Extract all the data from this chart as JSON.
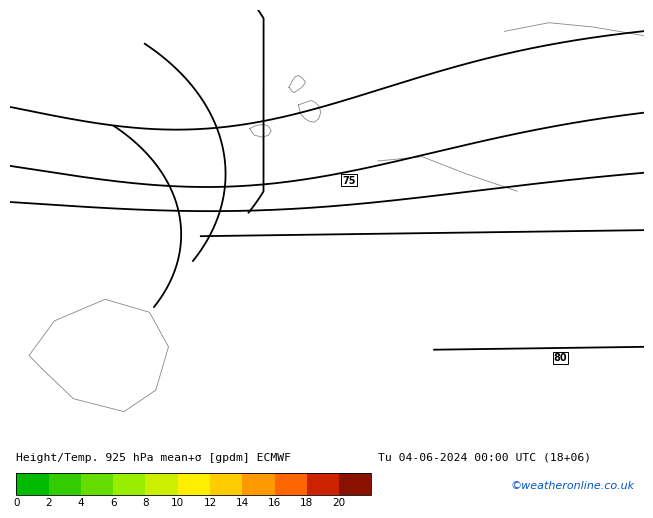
{
  "title_left": "Height/Temp. 925 hPa mean+σ [gpdm] ECMWF",
  "title_right": "Tu 04-06-2024 00:00 UTC (18+06)",
  "watermark": "©weatheronline.co.uk",
  "map_bg": "#00ee00",
  "colorbar_values": [
    0,
    2,
    4,
    6,
    8,
    10,
    12,
    14,
    16,
    18,
    20
  ],
  "colorbar_colors": [
    "#00bb00",
    "#33cc00",
    "#66dd00",
    "#99ee00",
    "#ccee00",
    "#ffee00",
    "#ffcc00",
    "#ff9900",
    "#ff6600",
    "#cc2200",
    "#881100"
  ],
  "contour_color": "#000000",
  "coast_color": "#888888",
  "bottom_bg": "#ffffff",
  "watermark_color": "#0055cc",
  "lon_min": -12,
  "lon_max": 22,
  "lat_min": 44,
  "lat_max": 64
}
